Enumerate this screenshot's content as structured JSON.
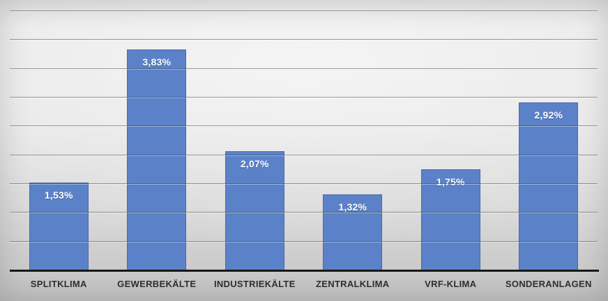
{
  "chart_data": {
    "type": "bar",
    "title": "",
    "xlabel": "",
    "ylabel": "",
    "categories": [
      "SPLITKLIMA",
      "GEWERBEKÄLTE",
      "INDUSTRIEKÄLTE",
      "ZENTRALKLIMA",
      "VRF-KLIMA",
      "SONDERANLAGEN"
    ],
    "values": [
      1.53,
      3.83,
      2.07,
      1.32,
      1.75,
      2.92
    ],
    "value_labels": [
      "1,53%",
      "3,83%",
      "2,07%",
      "1,32%",
      "1,75%",
      "2,92%"
    ],
    "ylim": [
      0,
      4.5
    ],
    "gridline_step": 0.5,
    "grid": true,
    "legend_position": "none",
    "axis_tick_labels_visible": false,
    "colors": {
      "bar_fill": "#5b82c9",
      "bar_border": "#44669f",
      "value_label_text": "#ffffff",
      "category_label_text": "#2e2e2e",
      "gridline": "#6f6f6f",
      "axis_line": "#161616",
      "background_top": "#e9e9e9",
      "background_bottom": "#c2c2c2"
    }
  }
}
